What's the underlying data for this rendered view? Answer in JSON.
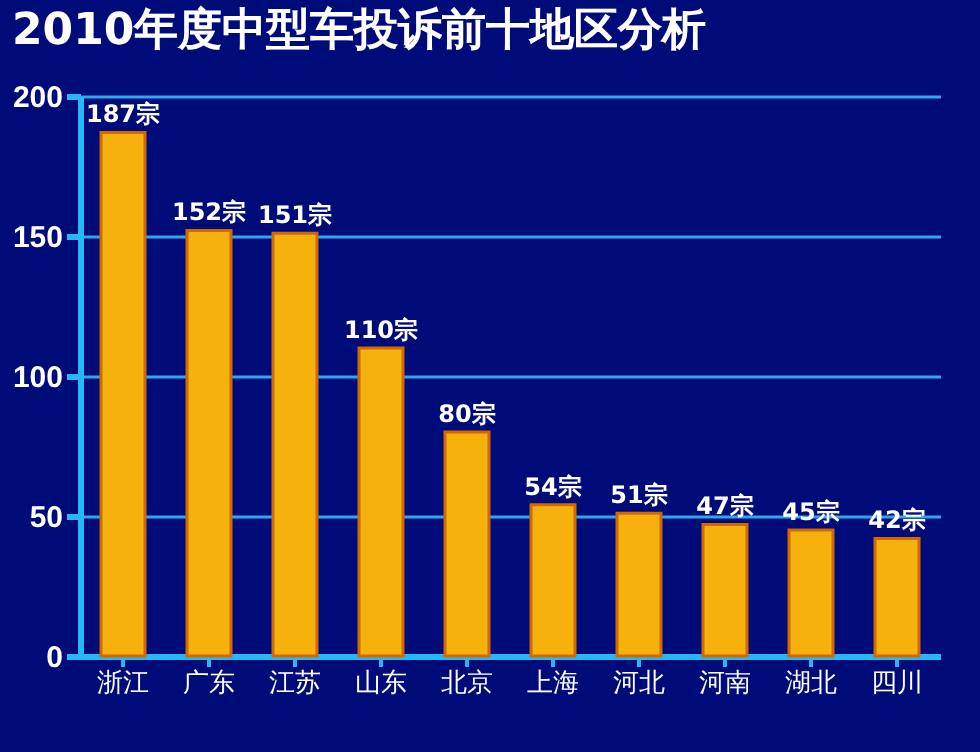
{
  "chart_data": {
    "type": "bar",
    "title": "2010年度中型车投诉前十地区分析",
    "categories": [
      "浙江",
      "广东",
      "江苏",
      "山东",
      "北京",
      "上海",
      "河北",
      "河南",
      "湖北",
      "四川"
    ],
    "values": [
      187,
      152,
      151,
      110,
      80,
      54,
      51,
      47,
      45,
      42
    ],
    "value_labels": [
      "187宗",
      "152宗",
      "151宗",
      "110宗",
      "80宗",
      "54宗",
      "51宗",
      "47宗",
      "45宗",
      "42宗"
    ],
    "color": "#f7b10c",
    "ylim": [
      0,
      200
    ],
    "yticks": [
      0,
      50,
      100,
      150,
      200
    ],
    "grid": "y"
  }
}
